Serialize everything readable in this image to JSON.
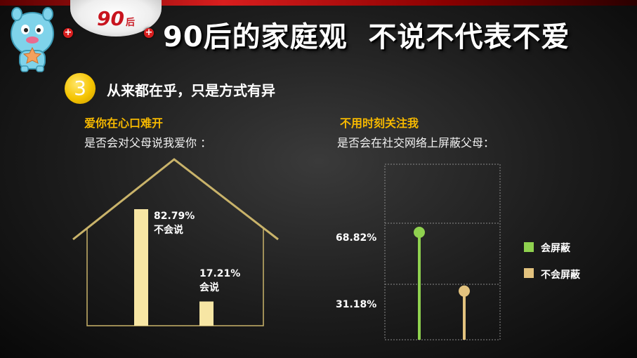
{
  "header": {
    "badge_number": "90",
    "badge_suffix": "后",
    "plus_symbol": "+",
    "title": "90后的家庭观  不说不代表不爱"
  },
  "section": {
    "number": "3",
    "title": "从来都在乎，只是方式有异"
  },
  "colors": {
    "accent_yellow": "#f5b800",
    "left_bar": "#f7e6a4",
    "house_line": "#c9b36a",
    "series_green": "#8fd14f",
    "series_tan": "#e2c27e"
  },
  "chart_data": [
    {
      "type": "bar",
      "subtitle": "爱你在心口难开",
      "question": "是否会对父母说我爱你  ：",
      "categories": [
        "不会说",
        "会说"
      ],
      "values": [
        82.79,
        17.21
      ],
      "value_labels": [
        "82.79%",
        "17.21%"
      ],
      "ylim": [
        0,
        100
      ]
    },
    {
      "type": "scatter",
      "subtitle": "不用时刻关注我",
      "question": "是否会在社交网络上屏蔽父母：",
      "series": [
        {
          "name": "会屏蔽",
          "values": [
            68.82
          ],
          "color": "#8fd14f"
        },
        {
          "name": "不会屏蔽",
          "values": [
            31.18
          ],
          "color": "#e2c27e"
        }
      ],
      "tick_labels": [
        "68.82%",
        "31.18%"
      ],
      "ylim": [
        0,
        100
      ],
      "grid": true,
      "legend": "right"
    }
  ]
}
